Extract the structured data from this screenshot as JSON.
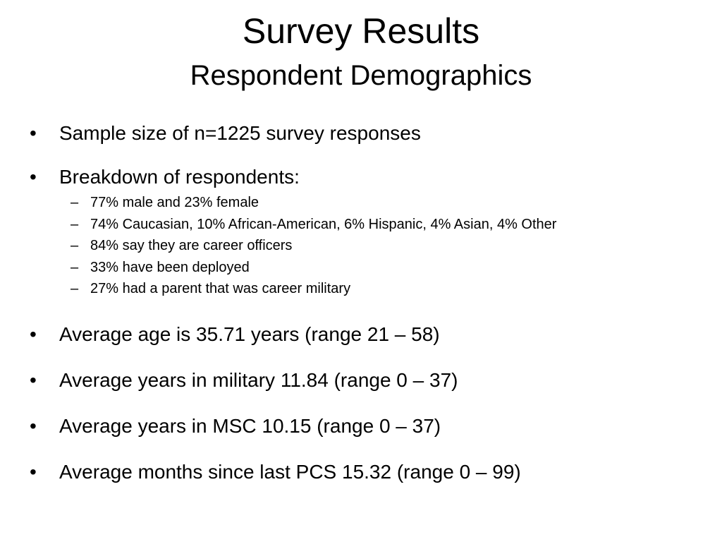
{
  "slide": {
    "title": "Survey Results",
    "subtitle": "Respondent Demographics",
    "bullet_glyph": "•",
    "dash_glyph": "–",
    "bullets": [
      {
        "text": "Sample size of n=1225 survey responses"
      },
      {
        "text": "Breakdown of respondents:"
      },
      {
        "text": "Average age is 35.71 years (range 21 – 58)"
      },
      {
        "text": "Average years in military 11.84 (range 0 – 37)"
      },
      {
        "text": "Average years in MSC 10.15 (range 0 – 37)"
      },
      {
        "text": "Average months since last PCS 15.32 (range 0 – 99)"
      }
    ],
    "breakdown": [
      {
        "text": "77% male and 23% female"
      },
      {
        "text": "74% Caucasian, 10% African-American, 6% Hispanic, 4% Asian, 4% Other"
      },
      {
        "text": "84% say they are career officers"
      },
      {
        "text": "33% have been deployed"
      },
      {
        "text": "27% had a parent that was career military"
      }
    ]
  }
}
